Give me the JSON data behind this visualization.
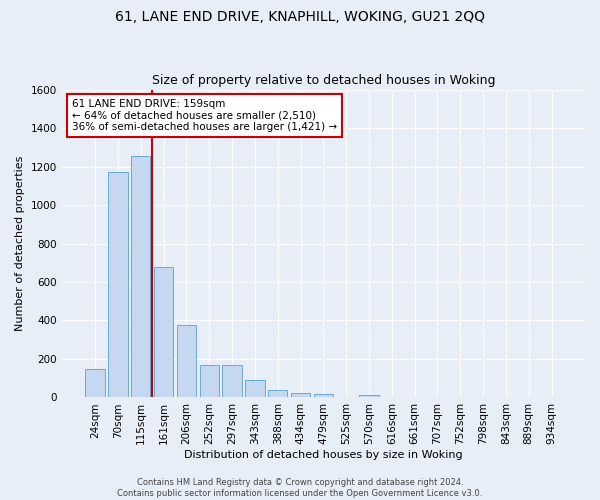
{
  "title1": "61, LANE END DRIVE, KNAPHILL, WOKING, GU21 2QQ",
  "title2": "Size of property relative to detached houses in Woking",
  "xlabel": "Distribution of detached houses by size in Woking",
  "ylabel": "Number of detached properties",
  "categories": [
    "24sqm",
    "70sqm",
    "115sqm",
    "161sqm",
    "206sqm",
    "252sqm",
    "297sqm",
    "343sqm",
    "388sqm",
    "434sqm",
    "479sqm",
    "525sqm",
    "570sqm",
    "616sqm",
    "661sqm",
    "707sqm",
    "752sqm",
    "798sqm",
    "843sqm",
    "889sqm",
    "934sqm"
  ],
  "values": [
    148,
    1170,
    1255,
    680,
    375,
    170,
    170,
    90,
    37,
    25,
    20,
    0,
    15,
    0,
    0,
    0,
    0,
    0,
    0,
    0,
    0
  ],
  "bar_color": "#c5d8f0",
  "bar_edge_color": "#6aaad4",
  "vline_color": "#cc0000",
  "vline_x": 2.5,
  "annotation_text": "61 LANE END DRIVE: 159sqm\n← 64% of detached houses are smaller (2,510)\n36% of semi-detached houses are larger (1,421) →",
  "annotation_box_color": "white",
  "annotation_box_edge_color": "#cc0000",
  "ylim": [
    0,
    1600
  ],
  "yticks": [
    0,
    200,
    400,
    600,
    800,
    1000,
    1200,
    1400,
    1600
  ],
  "footer_text": "Contains HM Land Registry data © Crown copyright and database right 2024.\nContains public sector information licensed under the Open Government Licence v3.0.",
  "bg_color": "#e8eef8",
  "grid_color": "white",
  "title1_fontsize": 10,
  "title2_fontsize": 9,
  "xlabel_fontsize": 8,
  "ylabel_fontsize": 8,
  "tick_fontsize": 7.5,
  "annotation_fontsize": 7.5,
  "footer_fontsize": 6
}
